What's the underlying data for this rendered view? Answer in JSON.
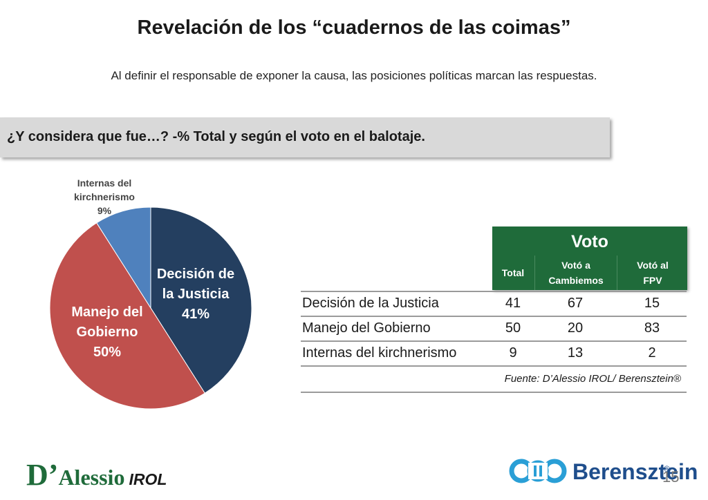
{
  "title": "Revelación de los “cuadernos de las coimas”",
  "subtitle": "Al definir el responsable de exponer la causa, las posiciones políticas marcan las respuestas.",
  "question": "¿Y considera que fue…? -% Total y según el voto en el balotaje.",
  "pie_labels": {
    "kirch": [
      "Internas del",
      "kirchnerismo",
      "9%"
    ],
    "justicia": [
      "Decisión de",
      "la Justicia",
      "41%"
    ],
    "gobierno": [
      "Manejo del",
      "Gobierno",
      "50%"
    ]
  },
  "table": {
    "group_header": "Voto",
    "columns": [
      "Total",
      "Votó a Cambiemos",
      "Votó al FPV"
    ],
    "column_lines": [
      [
        "Total"
      ],
      [
        "Votó a",
        "Cambiemos"
      ],
      [
        "Votó al",
        "FPV"
      ]
    ],
    "rows": [
      {
        "label": "Decisión de la Justicia",
        "values": [
          "41",
          "67",
          "15"
        ]
      },
      {
        "label": "Manejo del Gobierno",
        "values": [
          "50",
          "20",
          "83"
        ]
      },
      {
        "label": "Internas del kirchnerismo",
        "values": [
          "9",
          "13",
          "2"
        ]
      }
    ],
    "source": "Fuente: D’Alessio IROL/ Berensztein®"
  },
  "chart_data": {
    "type": "pie",
    "title": "",
    "categories": [
      "Decisión de la Justicia",
      "Manejo del Gobierno",
      "Internas del kirchnerismo"
    ],
    "values": [
      41,
      50,
      9
    ],
    "colors": [
      "#243f60",
      "#c0504d",
      "#4f81bd"
    ]
  },
  "footer": {
    "logo_left_d": "D’",
    "logo_left_name": "Alessio",
    "logo_left_suffix": "IROL",
    "logo_right_name": "Berensztein",
    "logo_right_reg": "®",
    "page_number": "15"
  }
}
